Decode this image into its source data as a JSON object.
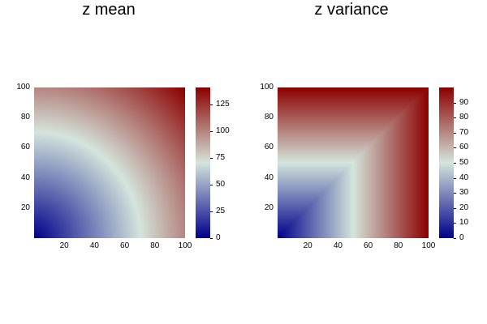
{
  "chart_data": [
    {
      "type": "heatmap",
      "title": "z mean",
      "x": {
        "range": [
          0,
          100
        ],
        "ticks": [
          20,
          40,
          60,
          80,
          100
        ]
      },
      "y": {
        "range": [
          0,
          100
        ],
        "ticks": [
          20,
          40,
          60,
          80,
          100
        ]
      },
      "colorbar": {
        "range": [
          0,
          141
        ],
        "ticks": [
          0,
          25,
          50,
          75,
          100,
          125
        ]
      },
      "colormap": "blue-white-red",
      "function": "z = sqrt(x^2 + y^2)"
    },
    {
      "type": "heatmap",
      "title": "z variance",
      "x": {
        "range": [
          0,
          100
        ],
        "ticks": [
          20,
          40,
          60,
          80,
          100
        ]
      },
      "y": {
        "range": [
          0,
          100
        ],
        "ticks": [
          20,
          40,
          60,
          80,
          100
        ]
      },
      "colorbar": {
        "range": [
          0,
          100
        ],
        "ticks": [
          0,
          10,
          20,
          30,
          40,
          50,
          60,
          70,
          80,
          90
        ]
      },
      "colormap": "blue-white-red",
      "function": "z = max(x, y)"
    }
  ],
  "colors": {
    "low": "#00008b",
    "mid": "#d4e5dc",
    "high": "#8b0000"
  }
}
